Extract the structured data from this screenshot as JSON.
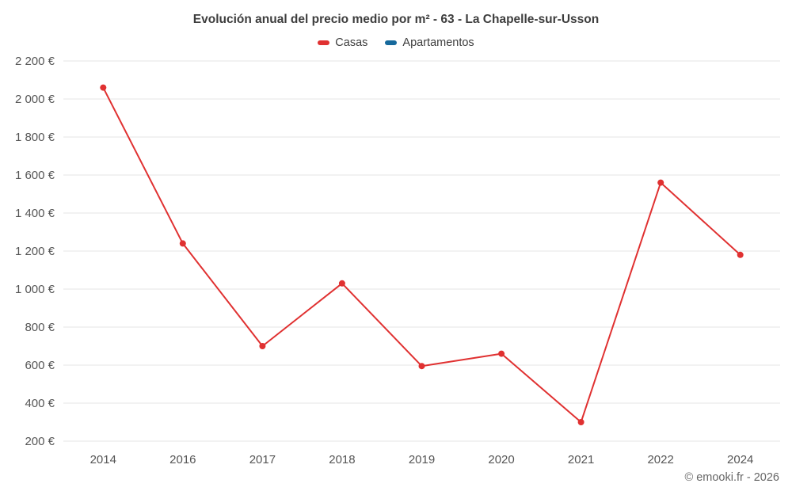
{
  "title": "Evolución anual del precio medio por m² - 63 - La Chapelle-sur-Usson",
  "legend": {
    "items": [
      {
        "label": "Casas",
        "color": "#e03131"
      },
      {
        "label": "Apartamentos",
        "color": "#16699c"
      }
    ]
  },
  "footer": {
    "credit": "© emooki.fr - 2026"
  },
  "colors": {
    "grid": "#e6e6e6",
    "axis_text": "#555555",
    "background": "#ffffff"
  },
  "chart_data": {
    "type": "line",
    "title": "Evolución anual del precio medio por m² - 63 - La Chapelle-sur-Usson",
    "categories": [
      "2014",
      "2016",
      "2017",
      "2018",
      "2019",
      "2020",
      "2021",
      "2022",
      "2024"
    ],
    "series": [
      {
        "name": "Casas",
        "color": "#e03131",
        "values": [
          2060,
          1240,
          700,
          1030,
          595,
          660,
          300,
          1560,
          1180
        ]
      },
      {
        "name": "Apartamentos",
        "color": "#16699c",
        "values": []
      }
    ],
    "xlabel": "",
    "ylabel": "",
    "ylim": [
      200,
      2200
    ],
    "yticks": [
      200,
      400,
      600,
      800,
      1000,
      1200,
      1400,
      1600,
      1800,
      2000,
      2200
    ],
    "ytick_labels": [
      "200 €",
      "400 €",
      "600 €",
      "800 €",
      "1 000 €",
      "1 200 €",
      "1 400 €",
      "1 600 €",
      "1 800 €",
      "2 000 €",
      "2 200 €"
    ],
    "grid": true,
    "legend_position": "top",
    "marker": "circle",
    "marker_radius": 4
  }
}
